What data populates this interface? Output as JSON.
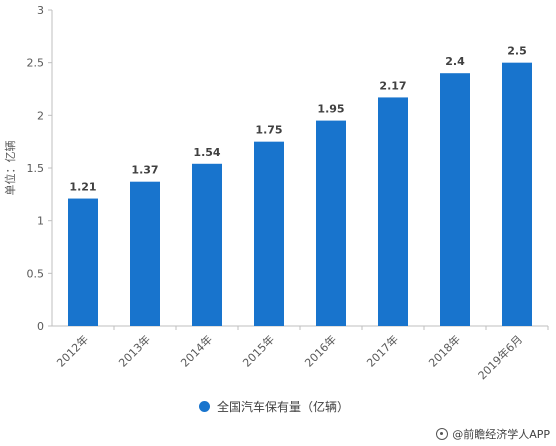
{
  "chart_data": {
    "type": "bar",
    "categories": [
      "2012年",
      "2013年",
      "2014年",
      "2015年",
      "2016年",
      "2017年",
      "2018年",
      "2019年6月"
    ],
    "values": [
      1.21,
      1.37,
      1.54,
      1.75,
      1.95,
      2.17,
      2.4,
      2.5
    ],
    "data_labels": [
      "1.21",
      "1.37",
      "1.54",
      "1.75",
      "1.95",
      "2.17",
      "2.4",
      "2.5"
    ],
    "y_ticks": [
      "0",
      "0.5",
      "1",
      "1.5",
      "2",
      "2.5",
      "3"
    ],
    "ylim": [
      0,
      3
    ],
    "ylabel": "单位：亿辆",
    "series": [
      {
        "name": "全国汽车保有量（亿辆）",
        "values": [
          1.21,
          1.37,
          1.54,
          1.75,
          1.95,
          2.17,
          2.4,
          2.5
        ]
      }
    ],
    "legend_position": "bottom",
    "grid": false,
    "colors": {
      "bar": "#1874CD",
      "axis": "#BFBFBF"
    }
  },
  "source_text": "@前瞻经济学人APP"
}
